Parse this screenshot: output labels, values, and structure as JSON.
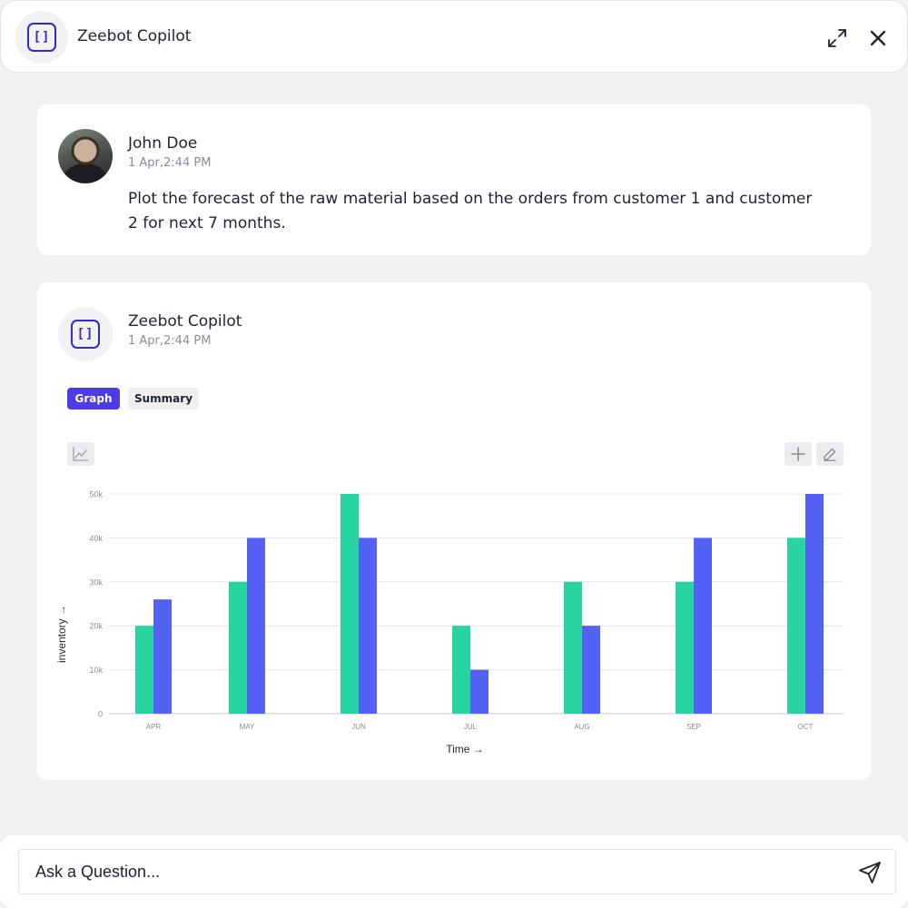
{
  "header": {
    "title": "Zeebot Copilot"
  },
  "user_message": {
    "author": "John Doe",
    "timestamp": "1 Apr,2:44 PM",
    "text": "Plot the forecast of the raw material based on the orders from customer 1 and customer 2 for next 7 months."
  },
  "bot_message": {
    "author": "Zeebot Copilot",
    "timestamp": "1 Apr,2:44 PM",
    "tabs": {
      "graph": "Graph",
      "summary": "Summary"
    },
    "active_tab": "Graph"
  },
  "colors": {
    "accent": "#4d3ce6",
    "series1": "#27d3a0",
    "series2": "#5461f5"
  },
  "chart_data": {
    "type": "bar",
    "categories": [
      "APR",
      "MAY",
      "JUN",
      "JUL",
      "AUG",
      "SEP",
      "OCT"
    ],
    "series": [
      {
        "values": [
          20000,
          30000,
          50000,
          20000,
          30000,
          30000,
          40000
        ]
      },
      {
        "values": [
          26000,
          40000,
          40000,
          10000,
          20000,
          40000,
          50000
        ]
      }
    ],
    "ylim": [
      0,
      50000
    ],
    "yticks": [
      "0",
      "10k",
      "20k",
      "30k",
      "40k",
      "50k"
    ],
    "xlabel": "Time →",
    "ylabel": "inventory →",
    "grid": true
  },
  "input": {
    "placeholder": "Ask a Question..."
  }
}
